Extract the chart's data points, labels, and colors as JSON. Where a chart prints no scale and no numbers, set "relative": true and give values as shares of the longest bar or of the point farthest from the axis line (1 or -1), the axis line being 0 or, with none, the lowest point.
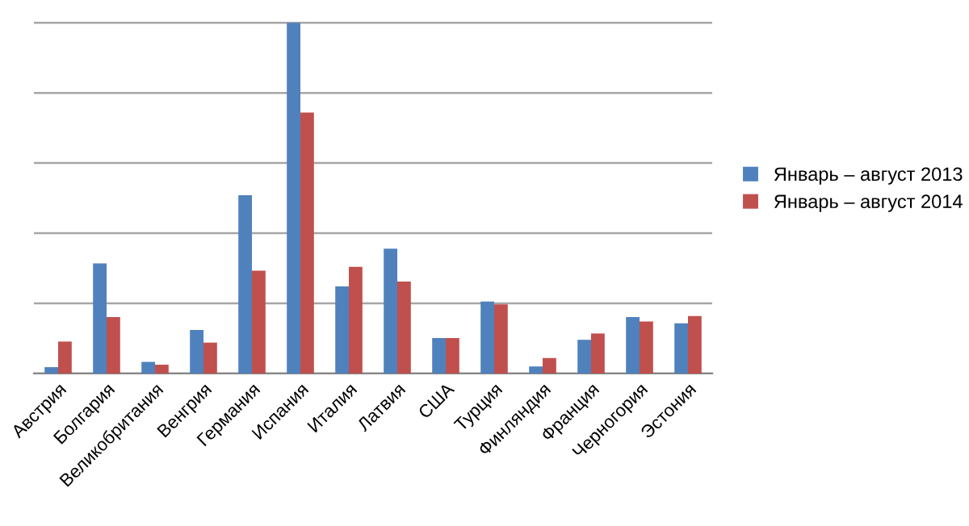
{
  "chart_data": {
    "type": "bar",
    "relative": true,
    "grid": "y",
    "legend": "right",
    "categories": [
      "Австрия",
      "Болгария",
      "Великобритания",
      "Венгрия",
      "Германия",
      "Испания",
      "Италия",
      "Латвия",
      "США",
      "Турция",
      "Финляндия",
      "Франция",
      "Черногория",
      "Эстония"
    ],
    "series": [
      {
        "name": "Январь – август 2013",
        "color": "#4f81bd",
        "values": [
          0.018,
          0.314,
          0.033,
          0.124,
          0.508,
          1,
          0.248,
          0.356,
          0.101,
          0.205,
          0.02,
          0.096,
          0.161,
          0.143
        ]
      },
      {
        "name": "Январь – август 2014",
        "color": "#c0504d",
        "values": [
          0.091,
          0.161,
          0.025,
          0.088,
          0.293,
          0.744,
          0.304,
          0.262,
          0.101,
          0.197,
          0.044,
          0.114,
          0.148,
          0.164
        ]
      }
    ]
  }
}
